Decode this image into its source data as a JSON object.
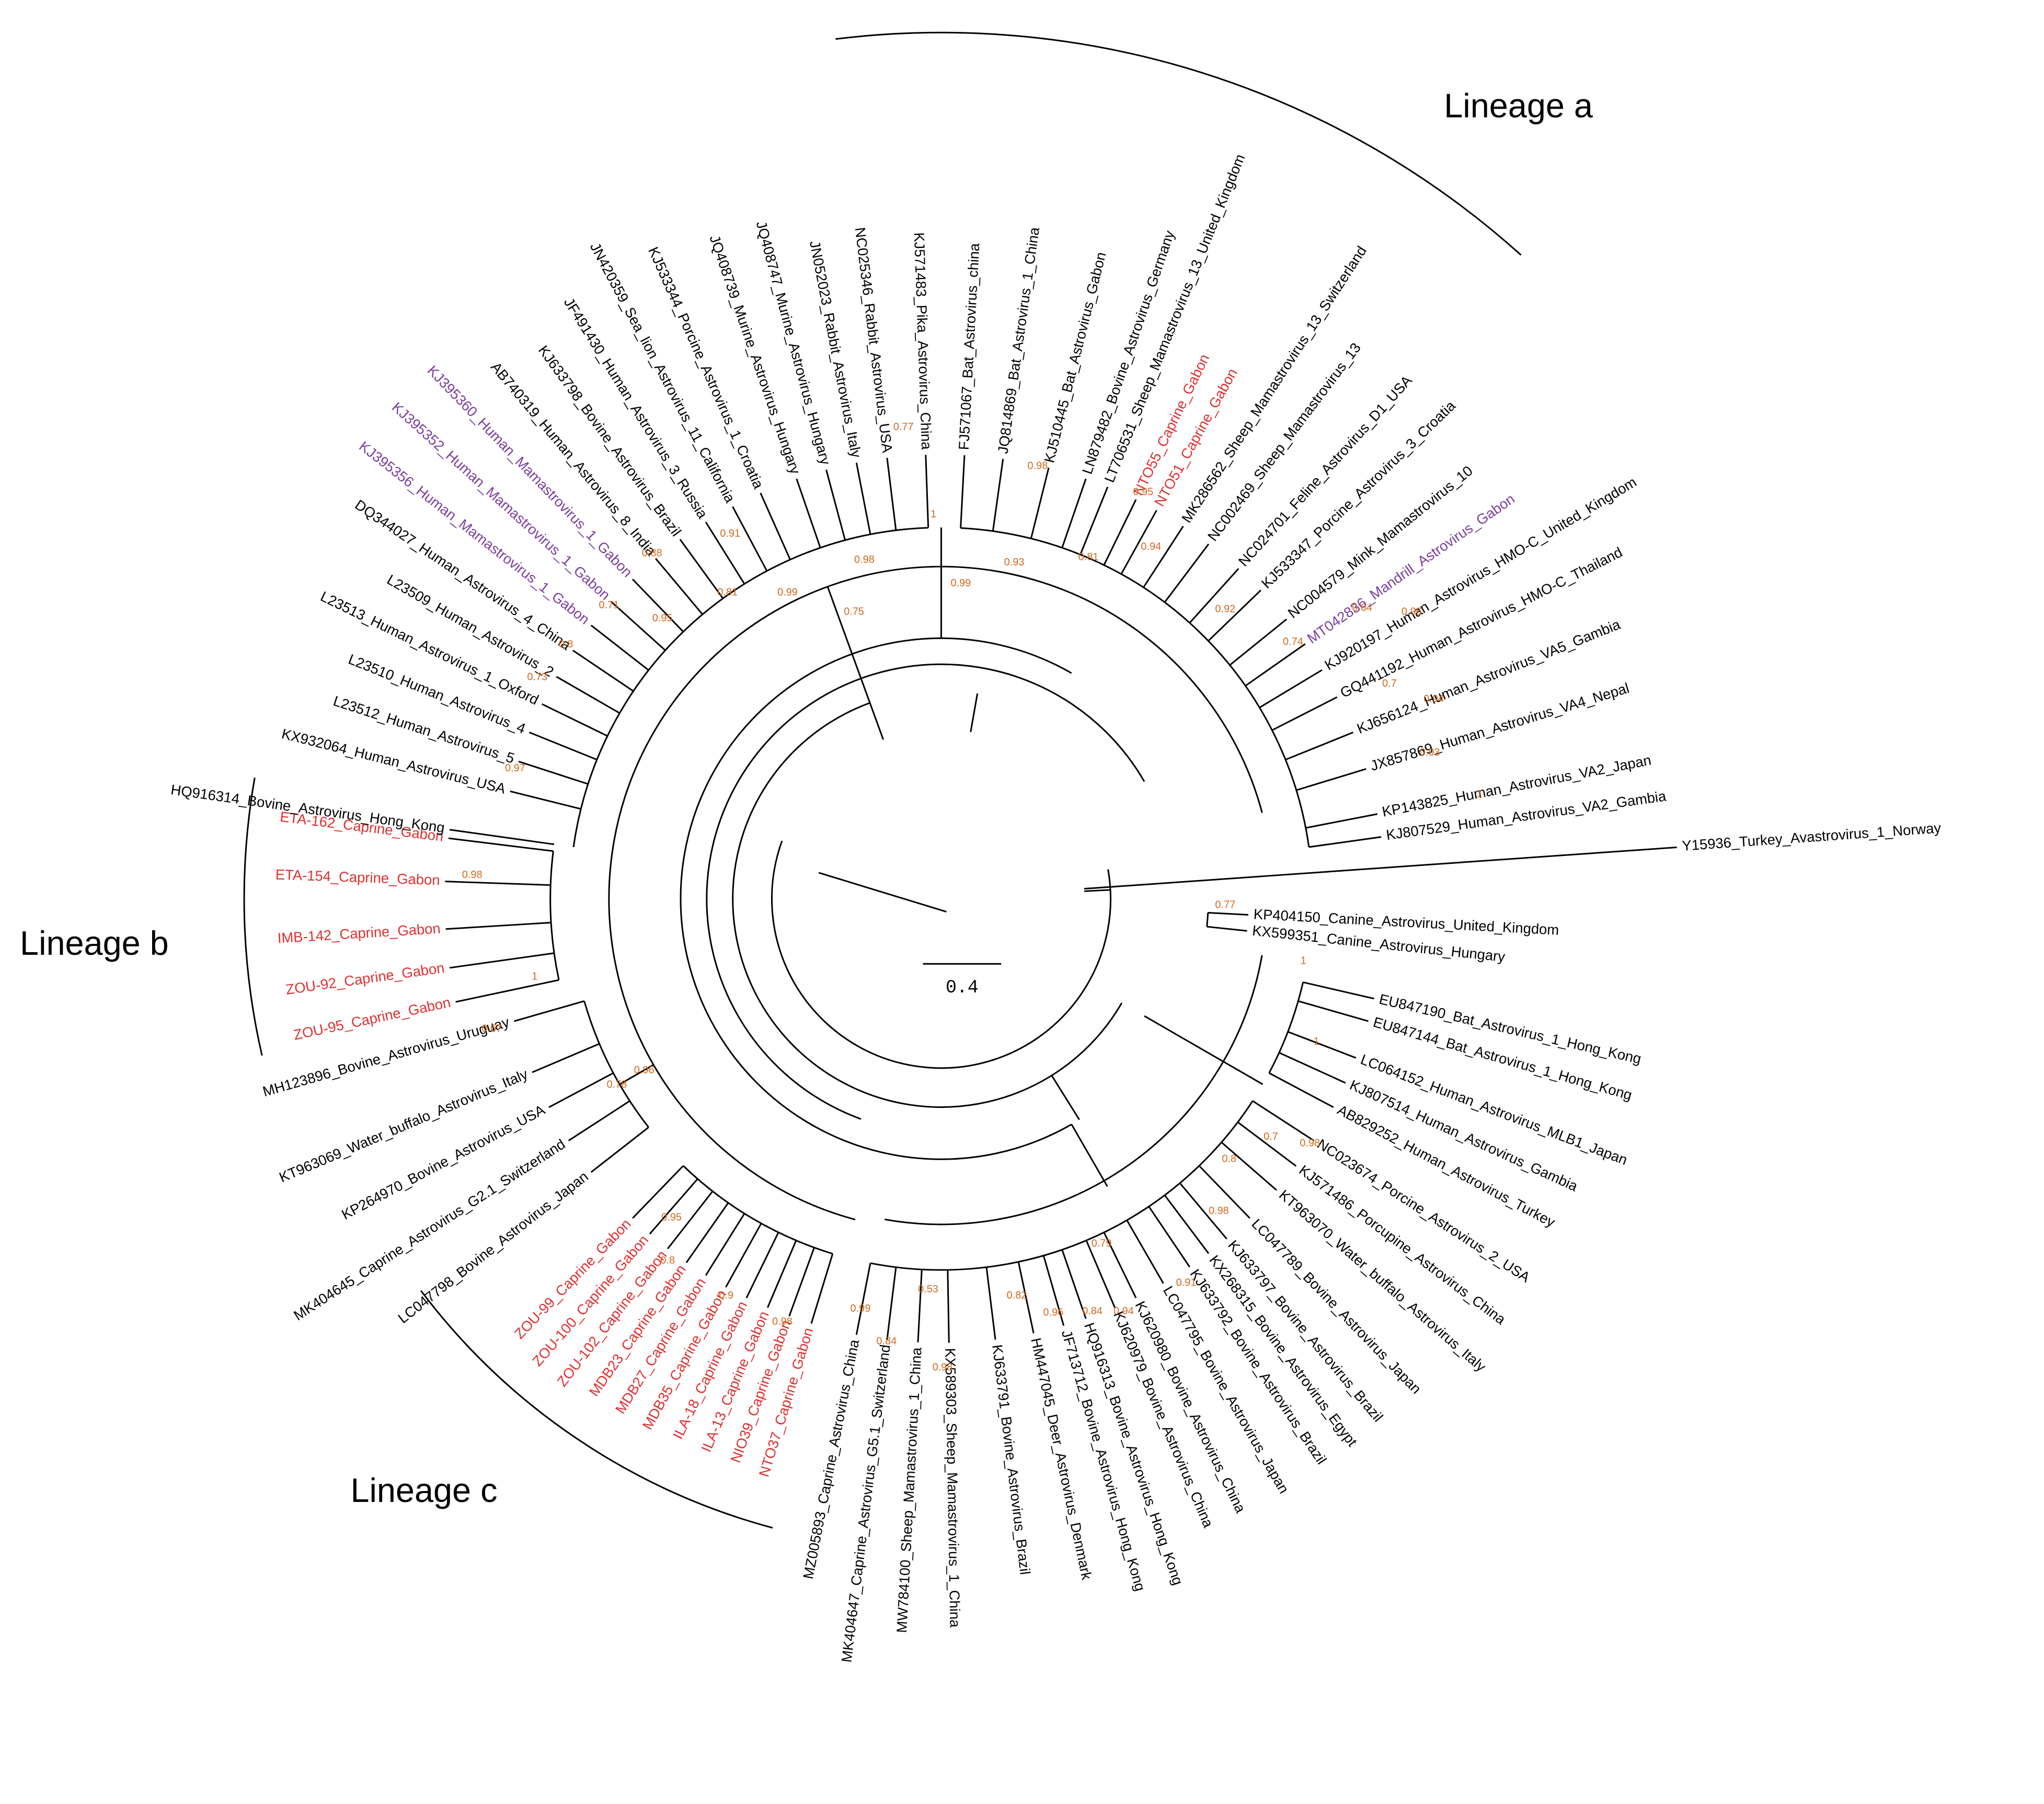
{
  "lineages": [
    "Lineage a",
    "Lineage b",
    "Lineage c"
  ],
  "scale_label": "0.4",
  "leaves": [
    {
      "label": "Y15936_Turkey_Avastrovirus_1_Norway"
    },
    {
      "label": "KP404150_Canine_Astrovirus_United_Kingdom"
    },
    {
      "label": "KX599351_Canine_Astrovirus_Hungary"
    },
    {
      "label": "EU847190_Bat_Astrovirus_1_Hong_Kong"
    },
    {
      "label": "EU847144_Bat_Astrovirus_1_Hong_Kong"
    },
    {
      "label": "LC064152_Human_Astrovirus_MLB1_Japan"
    },
    {
      "label": "KJ807514_Human_Astrovirus_Gambia"
    },
    {
      "label": "AB829252_Human_Astrovirus_Turkey"
    },
    {
      "label": "NC023674_Porcine_Astrovirus_2_USA"
    },
    {
      "label": "KJ571486_Porcupine_Astrovirus_China"
    },
    {
      "label": "KT963070_Water_buffalo_Astrovirus_Italy"
    },
    {
      "label": "LC047789_Bovine_Astrovirus_Japan"
    },
    {
      "label": "KJ633797_Bovine_Astrovirus_Brazil"
    },
    {
      "label": "KX268315_Bovine_Astrovirus_Egypt"
    },
    {
      "label": "KJ633792_Bovine_Astrovirus_Brazil"
    },
    {
      "label": "LC047795_Bovine_Astrovirus_Japan"
    },
    {
      "label": "KJ620980_Bovine_Astrovirus_China"
    },
    {
      "label": "KJ620979_Bovine_Astrovirus_China"
    },
    {
      "label": "HQ916313_Bovine_Astrovirus_Hong_Kong"
    },
    {
      "label": "JF713712_Bovine_Astrovirus_Hong_Kong"
    },
    {
      "label": "HM447045_Deer_Astrovirus_Denmark"
    },
    {
      "label": "KJ633791_Bovine_Astrovirus_Brazil"
    },
    {
      "label": "KX589303_Sheep_Mamastrovirus_1_China"
    },
    {
      "label": "MW784100_Sheep_Mamastrovirus_1_China"
    },
    {
      "label": "MK404647_Caprine_Astrovirus_G5.1_Switzerland"
    },
    {
      "label": "MZ005893_Caprine_Astrovirus_China"
    },
    {
      "label": "NTO37_Caprine_Gabon",
      "color": "#e03030"
    },
    {
      "label": "NIO39_Caprine_Gabon",
      "color": "#e03030"
    },
    {
      "label": "ILA-13_Caprine_Gabon",
      "color": "#e03030"
    },
    {
      "label": "ILA-18_Caprine_Gabon",
      "color": "#e03030"
    },
    {
      "label": "MDB35_Caprine_Gabon",
      "color": "#e03030"
    },
    {
      "label": "MDB27_Caprine_Gabon",
      "color": "#e03030"
    },
    {
      "label": "MDB23_Caprine_Gabon",
      "color": "#e03030"
    },
    {
      "label": "ZOU-102_Caprine_Gabon",
      "color": "#e03030"
    },
    {
      "label": "ZOU-100_Caprine_Gabon",
      "color": "#e03030"
    },
    {
      "label": "ZOU-99_Caprine_Gabon",
      "color": "#e03030"
    },
    {
      "label": "LC047798_Bovine_Astrovirus_Japan"
    },
    {
      "label": "MK404645_Caprine_Astrovirus_G2.1_Switzerland"
    },
    {
      "label": "KP264970_Bovine_Astrovirus_USA"
    },
    {
      "label": "KT963069_Water_buffalo_Astrovirus_Italy"
    },
    {
      "label": "MH123896_Bovine_Astrovirus_Uruguay"
    },
    {
      "label": "ZOU-95_Caprine_Gabon",
      "color": "#e03030"
    },
    {
      "label": "ZOU-92_Caprine_Gabon",
      "color": "#e03030"
    },
    {
      "label": "IMB-142_Caprine_Gabon",
      "color": "#e03030"
    },
    {
      "label": "ETA-154_Caprine_Gabon",
      "color": "#e03030"
    },
    {
      "label": "ETA-162_Caprine_Gabon",
      "color": "#e03030"
    },
    {
      "label": "HQ916314_Bovine_Astrovirus_Hong_Kong"
    },
    {
      "label": "KX932064_Human_Astrovirus_USA"
    },
    {
      "label": "L23512_Human_Astrovirus_5"
    },
    {
      "label": "L23510_Human_Astrovirus_4"
    },
    {
      "label": "L23513_Human_Astrovirus_1_Oxford"
    },
    {
      "label": "L23509_Human_Astrovirus_2"
    },
    {
      "label": "DQ344027_Human_Astrovirus_4_China"
    },
    {
      "label": "KJ395356_Human_Mamastrovirus_1_Gabon",
      "color": "#7b3f9e"
    },
    {
      "label": "KJ395352_Human_Mamastrovirus_1_Gabon",
      "color": "#7b3f9e"
    },
    {
      "label": "KJ395360_Human_Mamastrovirus_1_Gabon",
      "color": "#7b3f9e"
    },
    {
      "label": "AB740319_Human_Astrovirus_8_India"
    },
    {
      "label": "KJ633798_Bovine_Astrovirus_Brazil"
    },
    {
      "label": "JF491430_Human_Astrovirus_3_Russia"
    },
    {
      "label": "JN420359_Sea_lion_Astrovirus_11_California"
    },
    {
      "label": "KJ533344_Porcine_Astrovirus_1_Croatia"
    },
    {
      "label": "JQ408739_Murine_Astrovirus_Hungary"
    },
    {
      "label": "JQ408747_Murine_Astrovirus_Hungary"
    },
    {
      "label": "JN052023_Rabbit_Astrovirus_Italy"
    },
    {
      "label": "NC025346_Rabbit_Astrovirus_USA"
    },
    {
      "label": "KJ571483_Pika_Astrovirus_China"
    },
    {
      "label": "FJ571067_Bat_Astrovirus_china"
    },
    {
      "label": "JQ814869_Bat_Astrovirus_1_China"
    },
    {
      "label": "KJ510445_Bat_Astrovirus_Gabon"
    },
    {
      "label": "LN879482_Bovine_Astrovirus_Germany"
    },
    {
      "label": "LT706531_Sheep_Mamastrovirus_13_United_Kingdom"
    },
    {
      "label": "NTO55_Caprine_Gabon",
      "color": "#e03030"
    },
    {
      "label": "NTO51_Caprine_Gabon",
      "color": "#e03030"
    },
    {
      "label": "MK286562_Sheep_Mamastrovirus_13_Switzerland"
    },
    {
      "label": "NC002469_Sheep_Mamastrovirus_13"
    },
    {
      "label": "NC024701_Feline_Astrovirus_D1_USA"
    },
    {
      "label": "KJ533347_Porcine_Astrovirus_3_Croatia"
    },
    {
      "label": "NC004579_Mink_Mamastrovirus_10"
    },
    {
      "label": "MT042836_Mandrill_Astrovirus_Gabon",
      "color": "#7b3f9e"
    },
    {
      "label": "KJ920197_Human_Astrovirus_HMO-C_United_Kingdom"
    },
    {
      "label": "GQ441192_Human_Astrovirus_HMO-C_Thailand"
    },
    {
      "label": "KJ656124_Human_Astrovirus_VA5_Gambia"
    },
    {
      "label": "JX857869_Human_Astrovirus_VA4_Nepal"
    },
    {
      "label": "KP143825_Human_Astrovirus_VA2_Japan"
    },
    {
      "label": "KJ807529_Human_Astrovirus_VA2_Gambia"
    }
  ],
  "supports": [
    "0.95",
    "0.94",
    "0.92",
    "0.74",
    "0.7",
    "0.94",
    "0.93",
    "1",
    "0.96",
    "0.64",
    "0.98",
    "0.93",
    "0.81",
    "1",
    "0.77",
    "0.98",
    "0.75",
    "0.99",
    "0.81",
    "0.95",
    "0.91",
    "0.99",
    "0.88",
    "0.71",
    "0.8",
    "0.73",
    "0.97",
    "0.98",
    "1",
    "0.67",
    "0.78",
    "0.96",
    "0.95",
    "0.8",
    "0.9",
    "0.98",
    "0.99",
    "0.84",
    "0.98",
    "0.53",
    "0.82",
    "0.96",
    "0.84",
    "0.94",
    "0.91",
    "0.98",
    "0.8",
    "0.79",
    "0.7",
    "0.98",
    "0.77",
    "1",
    "1"
  ]
}
